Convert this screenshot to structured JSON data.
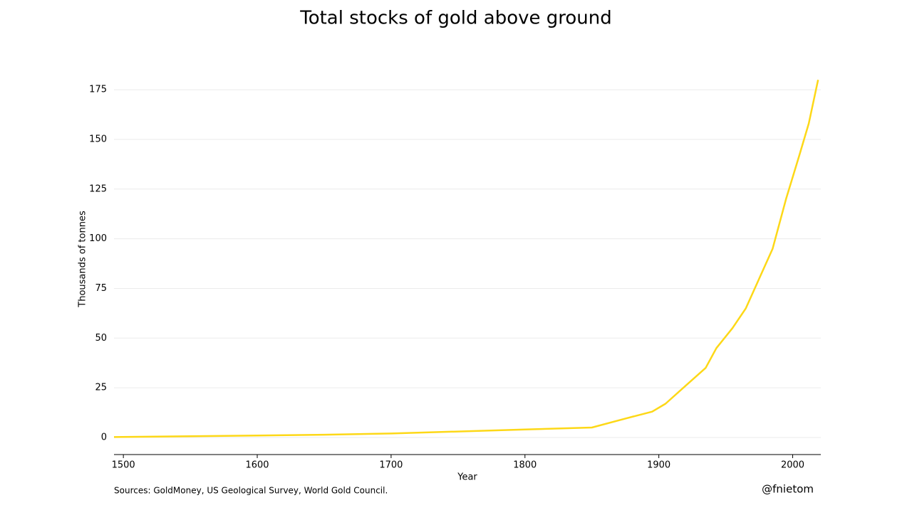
{
  "chart_data": {
    "type": "line",
    "title": "Total stocks of gold above ground",
    "x_label": "Year",
    "y_label": "Thousands of tonnes",
    "source": "Sources: GoldMoney, US Geological Survey, World Gold Council.",
    "credit": "@fnietom",
    "x": [
      1493,
      1550,
      1600,
      1650,
      1700,
      1750,
      1800,
      1850,
      1875,
      1895,
      1905,
      1920,
      1935,
      1943,
      1955,
      1965,
      1975,
      1985,
      1995,
      2005,
      2012,
      2019
    ],
    "series": [
      {
        "name": "Total stocks",
        "color": "#fdd817",
        "values": [
          0.2,
          0.6,
          1,
          1.4,
          2,
          3,
          4,
          5,
          9.5,
          13,
          17,
          26,
          35,
          45,
          55,
          65,
          80,
          95,
          120,
          142,
          158,
          180
        ]
      }
    ],
    "xlim": [
      1493,
      2021
    ],
    "xticks": [
      1500,
      1600,
      1700,
      1800,
      1900,
      2000
    ],
    "ylim": [
      -8.6,
      184
    ],
    "yticks": [
      0,
      25,
      50,
      75,
      100,
      125,
      150,
      175
    ],
    "grid": true
  }
}
